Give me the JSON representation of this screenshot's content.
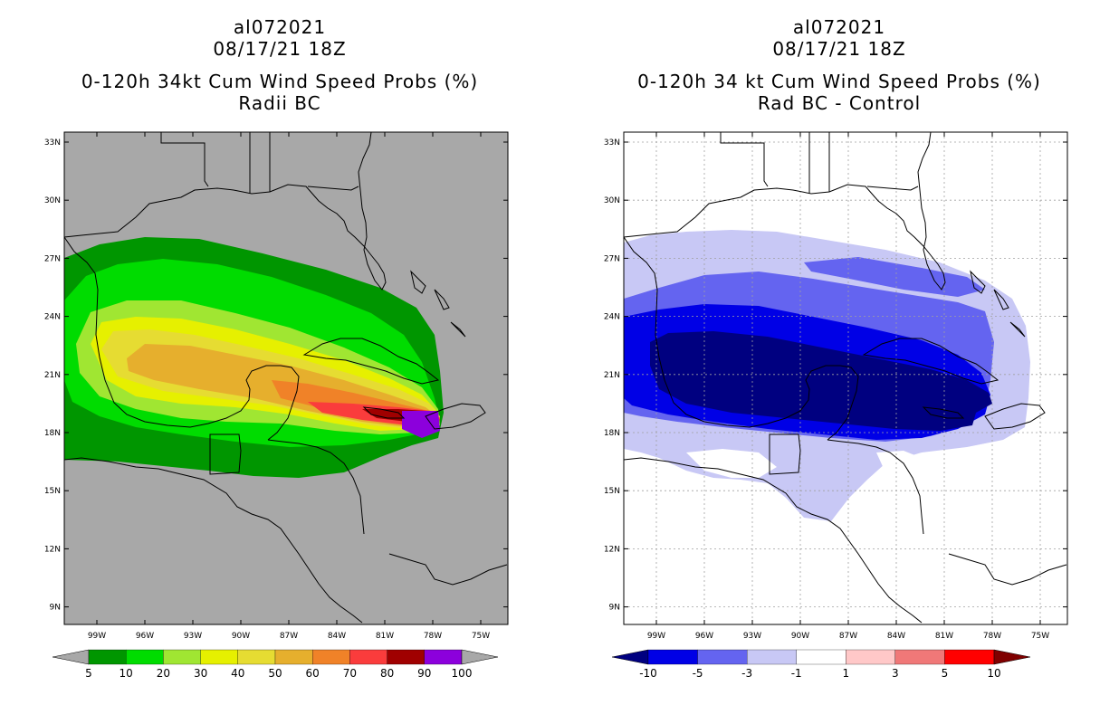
{
  "panels": [
    {
      "storm_id": "al072021",
      "datetime": "08/17/21 18Z",
      "title": "0-120h 34kt Cum Wind Speed Probs (%)",
      "subtitle": "Radii BC",
      "background_color": "#a8a8a8",
      "colorbar": {
        "labels": [
          "5",
          "10",
          "20",
          "30",
          "40",
          "50",
          "60",
          "70",
          "80",
          "90",
          "100"
        ],
        "colors": [
          "#009600",
          "#00dc00",
          "#a0e632",
          "#e6f000",
          "#e6dc32",
          "#e6af2d",
          "#f08228",
          "#fa3c3c",
          "#a00000",
          "#8c00dc"
        ],
        "end_left_color": "#a8a8a8",
        "end_right_color": "#a8a8a8"
      }
    },
    {
      "storm_id": "al072021",
      "datetime": "08/17/21 18Z",
      "title": "0-120h 34 kt Cum Wind Speed Probs (%)",
      "subtitle": "Rad BC - Control",
      "background_color": "#ffffff",
      "colorbar": {
        "labels": [
          "-10",
          "-5",
          "-3",
          "-1",
          "1",
          "3",
          "5",
          "10"
        ],
        "colors": [
          "#0000e6",
          "#6464f0",
          "#c8c8f5",
          "#ffffff",
          "#ffc8c8",
          "#f07878",
          "#ff0000"
        ],
        "end_left_color": "#000080",
        "end_right_color": "#800000"
      }
    }
  ],
  "axes": {
    "lon_labels": [
      "99W",
      "96W",
      "93W",
      "90W",
      "87W",
      "84W",
      "81W",
      "78W",
      "75W"
    ],
    "lat_labels": [
      "33N",
      "30N",
      "27N",
      "24N",
      "21N",
      "18N",
      "15N",
      "12N",
      "9N"
    ]
  }
}
